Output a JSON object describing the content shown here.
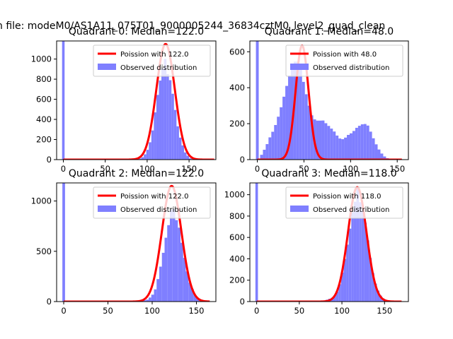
{
  "suptitle": "n file: modeM0/AS1A11_075T01_9000005244_36834cztM0_level2_quad_clean",
  "colors": {
    "hist": "#7f7fff",
    "poisson": "#ff0000",
    "axes": "#000000"
  },
  "chart_data": [
    {
      "type": "bar",
      "title": "Quadrant 0: Median=122.0",
      "xlabel": "",
      "ylabel": "",
      "xlim": [
        -8,
        182
      ],
      "ylim": [
        0,
        1180
      ],
      "xticks": [
        0,
        50,
        100,
        150
      ],
      "yticks": [
        0,
        200,
        400,
        600,
        800,
        1000
      ],
      "bin_width": 3,
      "zero_bin_count": 1180,
      "observed_peak_points": [
        [
          80,
          0
        ],
        [
          90,
          5
        ],
        [
          96,
          30
        ],
        [
          102,
          120
        ],
        [
          106,
          260
        ],
        [
          110,
          500
        ],
        [
          114,
          730
        ],
        [
          118,
          880
        ],
        [
          121,
          1030
        ],
        [
          124,
          860
        ],
        [
          128,
          780
        ],
        [
          132,
          580
        ],
        [
          136,
          350
        ],
        [
          140,
          200
        ],
        [
          146,
          60
        ],
        [
          152,
          8
        ],
        [
          160,
          0
        ]
      ],
      "poisson": {
        "name": "Poission with 122.0",
        "mean": 122.0,
        "peak": 1150,
        "x_range": [
          0,
          180
        ]
      },
      "legend": {
        "entries": [
          "Poission with 122.0",
          "Observed distribution"
        ],
        "loc": "upper right"
      }
    },
    {
      "type": "bar",
      "title": "Quadrant 1: Median=48.0",
      "xlabel": "",
      "ylabel": "",
      "xlim": [
        -8,
        162
      ],
      "ylim": [
        0,
        660
      ],
      "xticks": [
        0,
        50,
        100,
        150
      ],
      "yticks": [
        0,
        200,
        400,
        600
      ],
      "bin_width": 3,
      "zero_bin_count": 660,
      "observed_peak_points": [
        [
          2,
          5
        ],
        [
          6,
          40
        ],
        [
          10,
          80
        ],
        [
          14,
          130
        ],
        [
          18,
          170
        ],
        [
          22,
          230
        ],
        [
          26,
          300
        ],
        [
          30,
          380
        ],
        [
          34,
          460
        ],
        [
          38,
          520
        ],
        [
          42,
          560
        ],
        [
          46,
          520
        ],
        [
          50,
          420
        ],
        [
          54,
          330
        ],
        [
          58,
          250
        ],
        [
          62,
          220
        ],
        [
          66,
          215
        ],
        [
          70,
          220
        ],
        [
          74,
          200
        ],
        [
          78,
          180
        ],
        [
          82,
          160
        ],
        [
          86,
          130
        ],
        [
          90,
          110
        ],
        [
          94,
          120
        ],
        [
          98,
          140
        ],
        [
          102,
          150
        ],
        [
          106,
          175
        ],
        [
          110,
          190
        ],
        [
          114,
          200
        ],
        [
          118,
          195
        ],
        [
          122,
          150
        ],
        [
          126,
          100
        ],
        [
          130,
          60
        ],
        [
          134,
          30
        ],
        [
          138,
          10
        ],
        [
          145,
          0
        ]
      ],
      "poisson": {
        "name": "Poission with 48.0",
        "mean": 48.0,
        "peak": 635,
        "x_range": [
          0,
          155
        ]
      },
      "legend": {
        "entries": [
          "Poission with 48.0",
          "Observed distribution"
        ],
        "loc": "upper right"
      }
    },
    {
      "type": "bar",
      "title": "Quadrant 2: Median=122.0",
      "xlabel": "",
      "ylabel": "",
      "xlim": [
        -8,
        172
      ],
      "ylim": [
        0,
        1180
      ],
      "xticks": [
        0,
        50,
        100,
        150
      ],
      "yticks": [
        0,
        500,
        1000
      ],
      "bin_width": 3,
      "zero_bin_count": 1180,
      "observed_peak_points": [
        [
          85,
          0
        ],
        [
          95,
          20
        ],
        [
          100,
          60
        ],
        [
          104,
          130
        ],
        [
          108,
          280
        ],
        [
          112,
          460
        ],
        [
          116,
          660
        ],
        [
          120,
          820
        ],
        [
          123,
          1000
        ],
        [
          126,
          840
        ],
        [
          130,
          760
        ],
        [
          134,
          560
        ],
        [
          138,
          360
        ],
        [
          142,
          200
        ],
        [
          148,
          70
        ],
        [
          154,
          15
        ],
        [
          162,
          0
        ]
      ],
      "poisson": {
        "name": "Poission with 122.0",
        "mean": 122.0,
        "peak": 1150,
        "x_range": [
          0,
          165
        ]
      },
      "legend": {
        "entries": [
          "Poission with 122.0",
          "Observed distribution"
        ],
        "loc": "upper right"
      }
    },
    {
      "type": "bar",
      "title": "Quadrant 3: Median=118.0",
      "xlabel": "",
      "ylabel": "",
      "xlim": [
        -8,
        178
      ],
      "ylim": [
        0,
        1110
      ],
      "xticks": [
        0,
        50,
        100,
        150
      ],
      "yticks": [
        0,
        200,
        400,
        600,
        800,
        1000
      ],
      "bin_width": 3,
      "zero_bin_count": 1110,
      "observed_peak_points": [
        [
          70,
          0
        ],
        [
          80,
          10
        ],
        [
          90,
          40
        ],
        [
          96,
          110
        ],
        [
          100,
          250
        ],
        [
          104,
          420
        ],
        [
          108,
          600
        ],
        [
          112,
          820
        ],
        [
          116,
          950
        ],
        [
          119,
          1080
        ],
        [
          122,
          900
        ],
        [
          126,
          820
        ],
        [
          130,
          600
        ],
        [
          134,
          380
        ],
        [
          138,
          200
        ],
        [
          144,
          70
        ],
        [
          150,
          15
        ],
        [
          158,
          0
        ]
      ],
      "poisson": {
        "name": "Poission with 118.0",
        "mean": 118.0,
        "peak": 1070,
        "x_range": [
          0,
          170
        ]
      },
      "legend": {
        "entries": [
          "Poission with 118.0",
          "Observed distribution"
        ],
        "loc": "upper right"
      }
    }
  ]
}
